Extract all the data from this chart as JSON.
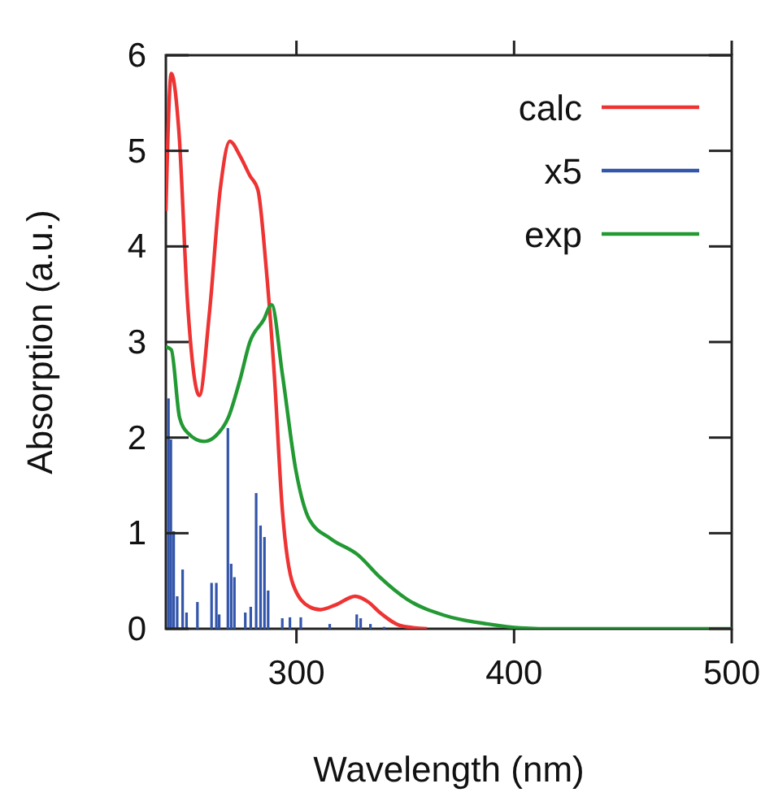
{
  "chart_data": {
    "type": "line",
    "xlabel": "Wavelength (nm)",
    "ylabel": "Absorption (a.u.)",
    "xlim": [
      240,
      500
    ],
    "ylim": [
      0,
      6
    ],
    "xticks": [
      300,
      400,
      500
    ],
    "yticks": [
      0,
      1,
      2,
      3,
      4,
      5,
      6
    ],
    "grid": false,
    "legend": "top right",
    "marker": "none",
    "line_style": "solid",
    "series": [
      {
        "name": "calc",
        "color": "#ee3333",
        "x": [
          240,
          242.5,
          246,
          250,
          255.4,
          260,
          265,
          269.4,
          274,
          278.6,
          282.3,
          286,
          289.8,
          293.5,
          298.5,
          306,
          311,
          318,
          327,
          333,
          338.3,
          348.3,
          360
        ],
        "values": [
          4.37,
          5.81,
          5.2,
          3.4,
          2.44,
          3.3,
          4.6,
          5.1,
          4.95,
          4.74,
          4.59,
          3.8,
          2.67,
          1.25,
          0.46,
          0.23,
          0.2,
          0.25,
          0.34,
          0.28,
          0.17,
          0.03,
          0
        ]
      },
      {
        "name": "x5",
        "type": "bar",
        "color": "#3355aa",
        "x": [
          241.2,
          242.3,
          243.6,
          245.2,
          247.7,
          249.5,
          254.5,
          261,
          263.2,
          264.5,
          268.5,
          270,
          271.5,
          276.5,
          279,
          281.5,
          283.5,
          285.3,
          287,
          293.5,
          297,
          302,
          315.3,
          327.7,
          329.5,
          334,
          340.3
        ],
        "values": [
          2.41,
          1.98,
          1.02,
          0.34,
          0.62,
          0.17,
          0.28,
          0.48,
          0.48,
          0.15,
          2.1,
          0.68,
          0.54,
          0.17,
          0.23,
          1.42,
          1.08,
          0.96,
          0.4,
          0.11,
          0.12,
          0.12,
          0.05,
          0.15,
          0.11,
          0.05,
          0.02
        ]
      },
      {
        "name": "exp",
        "color": "#229933",
        "x": [
          240,
          242.5,
          246.3,
          250,
          257.5,
          263,
          268.7,
          274,
          278.6,
          284.9,
          288.6,
          293.5,
          299.8,
          306,
          315.9,
          328.4,
          338.3,
          350.7,
          368,
          388,
          403,
          420,
          500
        ],
        "values": [
          2.95,
          2.92,
          2.21,
          2.05,
          1.96,
          2.02,
          2.21,
          2.6,
          3.0,
          3.23,
          3.39,
          2.67,
          1.65,
          1.14,
          0.94,
          0.77,
          0.54,
          0.31,
          0.14,
          0.05,
          0.01,
          0,
          0
        ]
      }
    ]
  }
}
